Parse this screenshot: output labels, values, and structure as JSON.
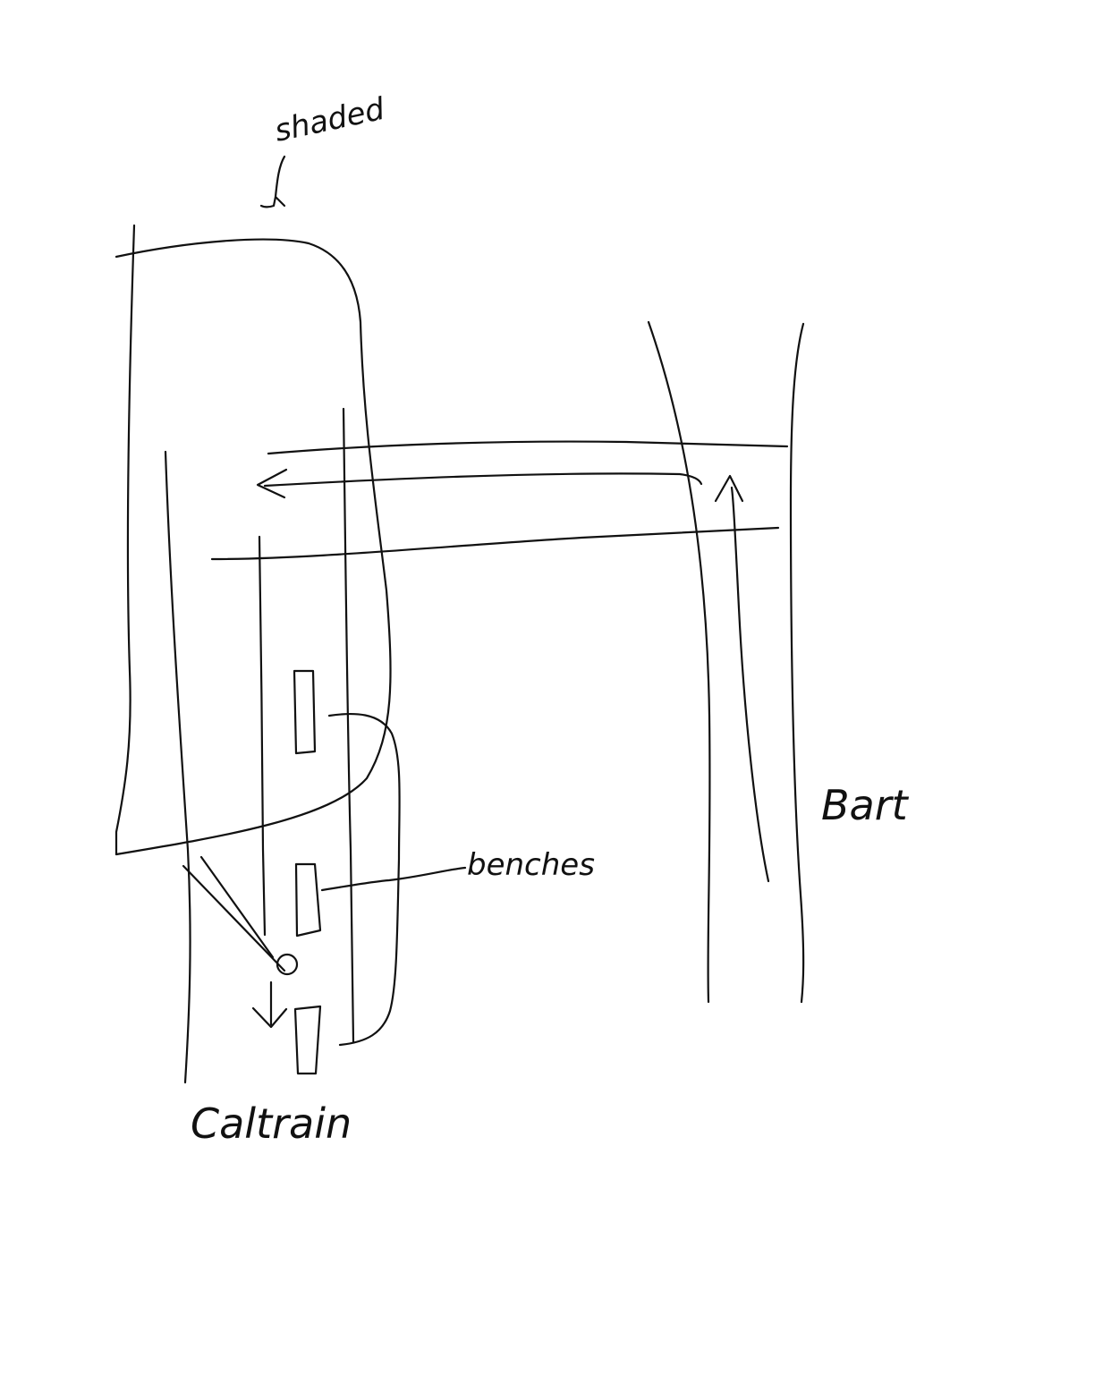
{
  "labels": {
    "shaded": "shaded",
    "benches": "benches",
    "bart": "Bart",
    "caltrain": "Caltrain"
  },
  "colors": {
    "ink": "#111111",
    "paper": "#ffffff"
  }
}
